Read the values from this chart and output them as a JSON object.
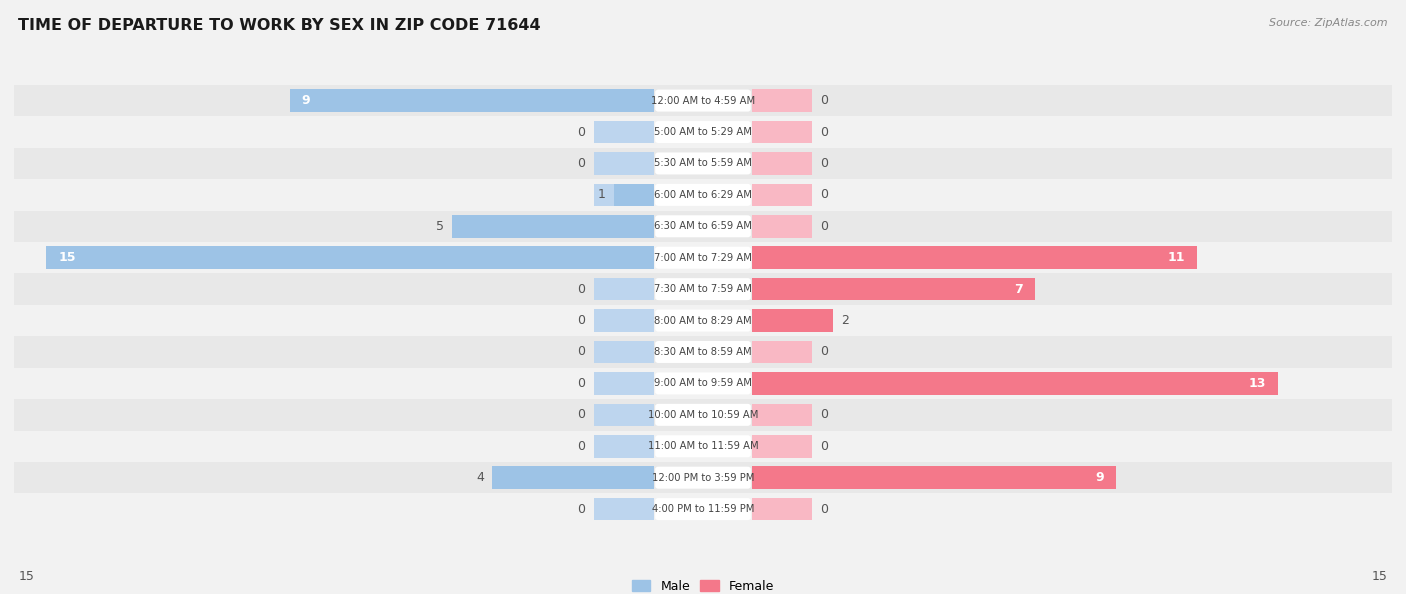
{
  "title": "TIME OF DEPARTURE TO WORK BY SEX IN ZIP CODE 71644",
  "source": "Source: ZipAtlas.com",
  "categories": [
    "12:00 AM to 4:59 AM",
    "5:00 AM to 5:29 AM",
    "5:30 AM to 5:59 AM",
    "6:00 AM to 6:29 AM",
    "6:30 AM to 6:59 AM",
    "7:00 AM to 7:29 AM",
    "7:30 AM to 7:59 AM",
    "8:00 AM to 8:29 AM",
    "8:30 AM to 8:59 AM",
    "9:00 AM to 9:59 AM",
    "10:00 AM to 10:59 AM",
    "11:00 AM to 11:59 AM",
    "12:00 PM to 3:59 PM",
    "4:00 PM to 11:59 PM"
  ],
  "male_values": [
    9,
    0,
    0,
    1,
    5,
    15,
    0,
    0,
    0,
    0,
    0,
    0,
    4,
    0
  ],
  "female_values": [
    0,
    0,
    0,
    0,
    0,
    11,
    7,
    2,
    0,
    13,
    0,
    0,
    9,
    0
  ],
  "male_color": "#9dc3e6",
  "female_color": "#f4788a",
  "male_stub_color": "#bdd5ee",
  "female_stub_color": "#f9b8c4",
  "max_value": 15,
  "bg_color": "#f2f2f2",
  "row_color_odd": "#e8e8e8",
  "row_color_even": "#f2f2f2",
  "title_color": "#1a1a1a",
  "source_color": "#888888",
  "label_text_color": "#444444",
  "value_text_color": "#555555"
}
